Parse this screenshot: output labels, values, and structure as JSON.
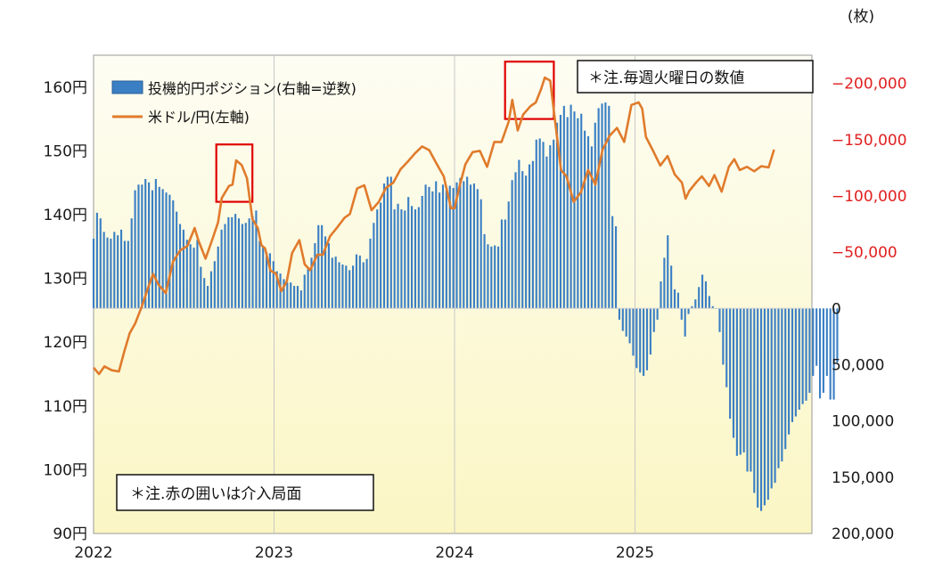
{
  "chart_data": {
    "type": "bar+line",
    "x_range": [
      2022.0,
      2025.98
    ],
    "x_ticks": [
      "2022",
      "2023",
      "2024",
      "2025"
    ],
    "left_axis": {
      "ticks": [
        "160円",
        "150円",
        "140円",
        "130円",
        "120円",
        "110円",
        "100円",
        "90円"
      ],
      "range": [
        90,
        165
      ]
    },
    "right_axis": {
      "unit_label": "(枚)",
      "ticks_negative": [
        "−200,000",
        "−150,000",
        "−100,000",
        "−50,000"
      ],
      "ticks_zero_and_positive": [
        "0",
        "50,000",
        "100,000",
        "150,000",
        "200,000"
      ],
      "range": [
        -225000,
        200000
      ],
      "inverted": true,
      "negative_color": "#e02020"
    },
    "legend": {
      "bar_label": "投機的円ポジション(右軸=逆数)",
      "line_label": "米ドル/円(左軸)"
    },
    "notes": {
      "weekly": "＊注.毎週火曜日の数値",
      "intervention": "＊注.赤の囲いは介入局面"
    },
    "colors": {
      "bar": "#3a7fc4",
      "line": "#e07b2c",
      "highlight": "#e00000",
      "plot_bg_top": "#fdfdf3",
      "plot_bg_bottom": "#fbf6c4"
    },
    "intervention_ranges": [
      [
        2022.68,
        2022.88
      ],
      [
        2024.28,
        2024.55
      ]
    ],
    "position_series": {
      "name": "投機的円ポジション(右軸=逆数)",
      "start": 2022.0,
      "step_weeks": 1,
      "values": [
        -62000,
        -85000,
        -80000,
        -68000,
        -63000,
        -62000,
        -68000,
        -65000,
        -70000,
        -60000,
        -60000,
        -80000,
        -105000,
        -110000,
        -110000,
        -115000,
        -112000,
        -105000,
        -115000,
        -108000,
        -106000,
        -103000,
        -101000,
        -96000,
        -86000,
        -75000,
        -70000,
        -61000,
        -57000,
        -54000,
        -61000,
        -37000,
        -27000,
        -20000,
        -33000,
        -42000,
        -55000,
        -70000,
        -75000,
        -81000,
        -81000,
        -84000,
        -80000,
        -75000,
        -76000,
        -80000,
        -82000,
        -87000,
        -60000,
        -55000,
        -50000,
        -49000,
        -42000,
        -33000,
        -31000,
        -26000,
        -23000,
        -23000,
        -20000,
        -20000,
        -16000,
        -30000,
        -35000,
        -45000,
        -58000,
        -74000,
        -74000,
        -64000,
        -58000,
        -45000,
        -46000,
        -41000,
        -39000,
        -38000,
        -34000,
        -38000,
        -48000,
        -47000,
        -41000,
        -44000,
        -62000,
        -76000,
        -88000,
        -94000,
        -111000,
        -117000,
        -117000,
        -88000,
        -93000,
        -88000,
        -87000,
        -99000,
        -91000,
        -88000,
        -90000,
        -100000,
        -110000,
        -108000,
        -104000,
        -113000,
        -103000,
        -110000,
        -105000,
        -109000,
        -107000,
        -112000,
        -116000,
        -113000,
        -117000,
        -110000,
        -111000,
        -106000,
        -97000,
        -66000,
        -57000,
        -55000,
        -56000,
        -55000,
        -79000,
        -79000,
        -95000,
        -114000,
        -121000,
        -132000,
        -122000,
        -118000,
        -128000,
        -131000,
        -150000,
        -151000,
        -148000,
        -135000,
        -145000,
        -150000,
        -165000,
        -172000,
        -180000,
        -170000,
        -181000,
        -175000,
        -169000,
        -173000,
        -158000,
        -153000,
        -144000,
        -165000,
        -178000,
        -182000,
        -183000,
        -180000,
        -82000,
        -73000,
        10000,
        20000,
        25000,
        31000,
        42000,
        53000,
        57000,
        60000,
        55000,
        41000,
        21000,
        10000,
        -24000,
        -45000,
        -65000,
        -38000,
        -17000,
        -14000,
        10000,
        25000,
        5000,
        -2000,
        -8000,
        -19000,
        -30000,
        -24000,
        -11000,
        -2000,
        0,
        21000,
        50000,
        70000,
        98000,
        115000,
        131000,
        130000,
        128000,
        145000,
        145000,
        164000,
        177000,
        180000,
        175000,
        170000,
        160000,
        155000,
        142000,
        136000,
        125000,
        112000,
        101000,
        96000,
        90000,
        85000,
        82000,
        75000,
        60000,
        51000,
        80000,
        75000,
        60000,
        81000,
        81000,
        48000
      ]
    },
    "usdjpy_series": {
      "name": "米ドル/円(左軸)",
      "points": [
        [
          2022.0,
          116.0
        ],
        [
          2022.03,
          115.0
        ],
        [
          2022.06,
          116.2
        ],
        [
          2022.1,
          115.6
        ],
        [
          2022.14,
          115.4
        ],
        [
          2022.17,
          118.5
        ],
        [
          2022.2,
          121.4
        ],
        [
          2022.23,
          122.9
        ],
        [
          2022.27,
          125.8
        ],
        [
          2022.3,
          128.4
        ],
        [
          2022.33,
          130.7
        ],
        [
          2022.36,
          129.0
        ],
        [
          2022.4,
          127.7
        ],
        [
          2022.44,
          132.6
        ],
        [
          2022.48,
          134.4
        ],
        [
          2022.52,
          135.1
        ],
        [
          2022.56,
          137.9
        ],
        [
          2022.58,
          136.0
        ],
        [
          2022.62,
          133.1
        ],
        [
          2022.66,
          136.3
        ],
        [
          2022.69,
          138.8
        ],
        [
          2022.71,
          142.6
        ],
        [
          2022.75,
          144.5
        ],
        [
          2022.77,
          144.7
        ],
        [
          2022.79,
          148.5
        ],
        [
          2022.82,
          147.8
        ],
        [
          2022.85,
          145.7
        ],
        [
          2022.88,
          139.3
        ],
        [
          2022.91,
          137.9
        ],
        [
          2022.93,
          135.2
        ],
        [
          2022.95,
          134.7
        ],
        [
          2022.98,
          131.2
        ],
        [
          2023.01,
          130.8
        ],
        [
          2023.04,
          128.0
        ],
        [
          2023.07,
          129.5
        ],
        [
          2023.1,
          134.0
        ],
        [
          2023.14,
          136.0
        ],
        [
          2023.17,
          132.2
        ],
        [
          2023.2,
          131.3
        ],
        [
          2023.24,
          133.7
        ],
        [
          2023.27,
          133.7
        ],
        [
          2023.31,
          136.6
        ],
        [
          2023.35,
          138.0
        ],
        [
          2023.39,
          139.5
        ],
        [
          2023.42,
          140.1
        ],
        [
          2023.46,
          144.1
        ],
        [
          2023.5,
          144.6
        ],
        [
          2023.54,
          140.7
        ],
        [
          2023.58,
          142.0
        ],
        [
          2023.62,
          144.2
        ],
        [
          2023.66,
          145.0
        ],
        [
          2023.7,
          147.1
        ],
        [
          2023.74,
          148.3
        ],
        [
          2023.78,
          149.6
        ],
        [
          2023.82,
          150.7
        ],
        [
          2023.86,
          150.1
        ],
        [
          2023.9,
          148.0
        ],
        [
          2023.94,
          146.0
        ],
        [
          2023.98,
          141.0
        ],
        [
          2024.0,
          141.0
        ],
        [
          2024.03,
          144.7
        ],
        [
          2024.06,
          147.9
        ],
        [
          2024.1,
          149.8
        ],
        [
          2024.14,
          150.0
        ],
        [
          2024.18,
          147.5
        ],
        [
          2024.22,
          151.4
        ],
        [
          2024.26,
          151.4
        ],
        [
          2024.3,
          154.6
        ],
        [
          2024.32,
          158.0
        ],
        [
          2024.35,
          153.2
        ],
        [
          2024.38,
          155.7
        ],
        [
          2024.42,
          157.0
        ],
        [
          2024.45,
          157.6
        ],
        [
          2024.48,
          159.7
        ],
        [
          2024.5,
          161.5
        ],
        [
          2024.53,
          161.0
        ],
        [
          2024.56,
          154.0
        ],
        [
          2024.59,
          147.0
        ],
        [
          2024.62,
          146.0
        ],
        [
          2024.66,
          142.0
        ],
        [
          2024.7,
          143.5
        ],
        [
          2024.74,
          147.0
        ],
        [
          2024.78,
          144.7
        ],
        [
          2024.82,
          150.2
        ],
        [
          2024.86,
          152.4
        ],
        [
          2024.9,
          153.6
        ],
        [
          2024.94,
          151.4
        ],
        [
          2024.98,
          157.2
        ],
        [
          2025.02,
          157.6
        ],
        [
          2025.04,
          156.6
        ],
        [
          2025.06,
          152.2
        ],
        [
          2025.1,
          150.0
        ],
        [
          2025.14,
          147.7
        ],
        [
          2025.18,
          149.2
        ],
        [
          2025.22,
          146.3
        ],
        [
          2025.26,
          145.0
        ],
        [
          2025.28,
          142.5
        ],
        [
          2025.3,
          143.7
        ],
        [
          2025.34,
          145.1
        ],
        [
          2025.37,
          146.0
        ],
        [
          2025.41,
          144.5
        ],
        [
          2025.44,
          146.2
        ],
        [
          2025.48,
          143.6
        ],
        [
          2025.52,
          147.5
        ],
        [
          2025.55,
          148.7
        ],
        [
          2025.58,
          147.0
        ],
        [
          2025.62,
          147.5
        ],
        [
          2025.66,
          146.8
        ],
        [
          2025.7,
          147.6
        ],
        [
          2025.74,
          147.4
        ],
        [
          2025.77,
          150.2
        ]
      ]
    }
  }
}
